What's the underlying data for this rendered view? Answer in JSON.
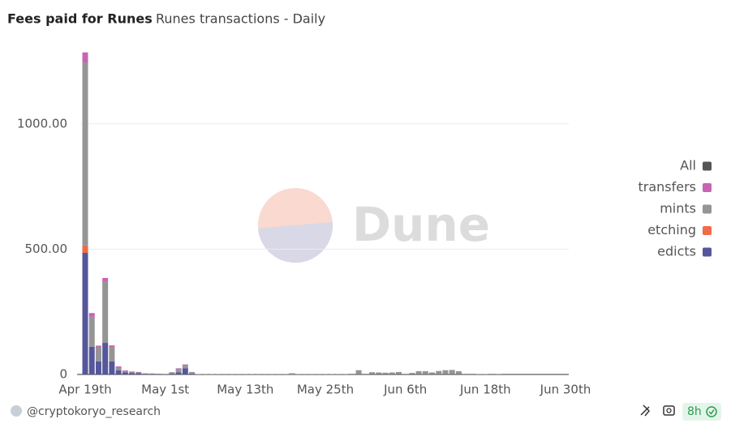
{
  "chart_data": {
    "type": "stacked_bar",
    "title": "Fees paid for Runes",
    "subtitle": "Runes transactions - Daily",
    "watermark": "Dune",
    "categories": [
      "Apr 19th",
      null,
      null,
      null,
      null,
      null,
      null,
      null,
      null,
      null,
      null,
      null,
      "May 1st",
      null,
      null,
      null,
      null,
      null,
      null,
      null,
      null,
      null,
      null,
      null,
      "May 13th",
      null,
      null,
      null,
      null,
      null,
      null,
      null,
      null,
      null,
      null,
      null,
      "May 25th",
      null,
      null,
      null,
      null,
      null,
      null,
      null,
      null,
      null,
      null,
      null,
      "Jun 6th",
      null,
      null,
      null,
      null,
      null,
      null,
      null,
      null,
      null,
      null,
      null,
      "Jun 18th",
      null,
      null,
      null,
      null,
      null,
      null,
      null,
      null,
      null,
      null,
      null,
      "Jun 30th"
    ],
    "series": [
      {
        "name": "edicts",
        "color": "#55579a",
        "values": [
          485,
          110,
          52,
          126,
          52,
          16,
          8,
          6,
          5,
          2,
          2,
          1,
          1,
          3,
          8,
          25,
          3,
          0,
          0,
          0,
          0,
          0,
          0,
          0,
          0,
          0,
          0,
          0,
          0,
          0,
          0,
          0,
          0,
          0,
          0,
          0,
          0,
          0,
          0,
          0,
          0,
          2,
          0,
          1,
          1,
          1,
          1,
          1,
          0,
          1,
          1,
          1,
          1,
          1,
          1,
          1,
          1,
          0,
          0,
          0,
          0,
          0,
          0,
          null,
          null,
          null,
          null,
          null,
          null,
          null,
          null,
          null,
          null
        ]
      },
      {
        "name": "etching",
        "color": "#f06b46",
        "values": [
          30,
          0,
          0,
          0,
          0,
          0,
          0,
          0,
          0,
          0,
          0,
          0,
          0,
          0,
          0,
          0,
          0,
          0,
          0,
          0,
          0,
          0,
          0,
          0,
          0,
          0,
          0,
          0,
          0,
          0,
          0,
          0,
          0,
          0,
          0,
          0,
          0,
          0,
          0,
          0,
          0,
          0,
          0,
          0,
          0,
          0,
          0,
          0,
          0,
          0,
          0,
          0,
          0,
          0,
          0,
          0,
          0,
          0,
          0,
          0,
          0,
          0,
          0,
          null,
          null,
          null,
          null,
          null,
          null,
          null,
          null,
          null,
          null
        ]
      },
      {
        "name": "mints",
        "color": "#959595",
        "values": [
          730,
          120,
          58,
          246,
          58,
          10,
          5,
          4,
          3,
          2,
          1,
          1,
          1,
          5,
          15,
          10,
          6,
          2,
          2,
          2,
          2,
          2,
          2,
          2,
          2,
          2,
          2,
          2,
          2,
          2,
          2,
          5,
          2,
          2,
          2,
          2,
          2,
          2,
          2,
          2,
          3,
          15,
          3,
          8,
          7,
          6,
          7,
          9,
          3,
          5,
          12,
          12,
          7,
          13,
          16,
          17,
          12,
          3,
          3,
          2,
          2,
          2,
          1,
          null,
          null,
          null,
          null,
          null,
          null,
          null,
          null,
          null,
          null
        ]
      },
      {
        "name": "transfers",
        "color": "#c864b4",
        "values": [
          40,
          15,
          5,
          13,
          6,
          6,
          3,
          2,
          2,
          1,
          1,
          1,
          0,
          1,
          2,
          5,
          1,
          0,
          0,
          0,
          0,
          0,
          0,
          0,
          0,
          0,
          0,
          0,
          0,
          0,
          0,
          0,
          0,
          0,
          0,
          0,
          0,
          0,
          0,
          0,
          0,
          0,
          0,
          0,
          0,
          0,
          0,
          0,
          0,
          0,
          0,
          0,
          0,
          0,
          0,
          0,
          0,
          0,
          0,
          0,
          0,
          1,
          0,
          null,
          null,
          null,
          null,
          null,
          null,
          null,
          null,
          null,
          null
        ]
      }
    ],
    "legend_all": {
      "label": "All",
      "color": "#555555"
    },
    "ylim": [
      0,
      1300
    ],
    "yticks": [
      0,
      {
        "value": 500,
        "label": "500.00"
      },
      {
        "value": 1000,
        "label": "1000.00"
      }
    ],
    "grid": true,
    "legend_position": "right"
  },
  "footer": {
    "author": "@cryptokoryo_research",
    "refresh": "8h"
  }
}
